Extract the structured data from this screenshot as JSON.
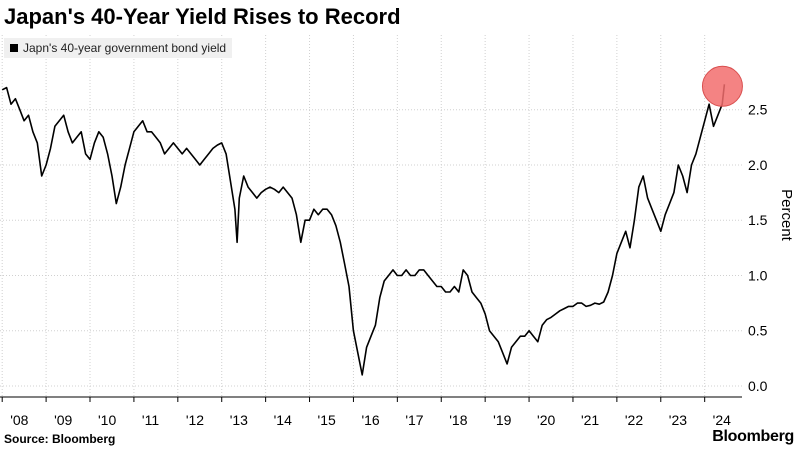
{
  "source": "Source: Bloomberg",
  "brand": "Bloomberg",
  "colors": {
    "line": "#000000",
    "grid": "#d0d0d0",
    "highlight": "#f26d6d"
  },
  "chart_data": {
    "type": "line",
    "title": "Japan's 40-Year Yield Rises to Record",
    "ylabel": "Percent",
    "xlabel": "",
    "ylim": [
      -0.1,
      2.95
    ],
    "xlim": [
      2007.95,
      2024.85
    ],
    "ytick_labels": [
      "0.0",
      "0.5",
      "1.0",
      "1.5",
      "2.0",
      "2.5"
    ],
    "yticks": [
      0.0,
      0.5,
      1.0,
      1.5,
      2.0,
      2.5
    ],
    "xtick_labels": [
      "'08",
      "'09",
      "'10",
      "'11",
      "'12",
      "'13",
      "'14",
      "'15",
      "'16",
      "'17",
      "'18",
      "'19",
      "'20",
      "'21",
      "'22",
      "'23",
      "'24"
    ],
    "xticks": [
      2008,
      2009,
      2010,
      2011,
      2012,
      2013,
      2014,
      2015,
      2016,
      2017,
      2018,
      2019,
      2020,
      2021,
      2022,
      2023,
      2024
    ],
    "grid": true,
    "legend_position": "top-left",
    "highlight_marker": {
      "x": 2024.45,
      "y": 2.73
    },
    "series": [
      {
        "name": "Japn's 40-year government bond yield",
        "x": [
          2008.0,
          2008.1,
          2008.2,
          2008.3,
          2008.4,
          2008.5,
          2008.6,
          2008.7,
          2008.8,
          2008.9,
          2009.0,
          2009.1,
          2009.2,
          2009.3,
          2009.4,
          2009.5,
          2009.6,
          2009.7,
          2009.8,
          2009.9,
          2010.0,
          2010.1,
          2010.2,
          2010.3,
          2010.4,
          2010.5,
          2010.6,
          2010.7,
          2010.8,
          2010.9,
          2011.0,
          2011.1,
          2011.2,
          2011.3,
          2011.4,
          2011.5,
          2011.6,
          2011.7,
          2011.8,
          2011.9,
          2012.0,
          2012.1,
          2012.2,
          2012.3,
          2012.4,
          2012.5,
          2012.6,
          2012.7,
          2012.8,
          2012.9,
          2013.0,
          2013.1,
          2013.2,
          2013.3,
          2013.35,
          2013.4,
          2013.5,
          2013.6,
          2013.7,
          2013.8,
          2013.9,
          2014.0,
          2014.1,
          2014.2,
          2014.3,
          2014.4,
          2014.5,
          2014.6,
          2014.7,
          2014.8,
          2014.9,
          2015.0,
          2015.1,
          2015.2,
          2015.3,
          2015.4,
          2015.5,
          2015.6,
          2015.7,
          2015.8,
          2015.9,
          2016.0,
          2016.1,
          2016.2,
          2016.3,
          2016.4,
          2016.5,
          2016.6,
          2016.7,
          2016.8,
          2016.9,
          2017.0,
          2017.1,
          2017.2,
          2017.3,
          2017.4,
          2017.5,
          2017.6,
          2017.7,
          2017.8,
          2017.9,
          2018.0,
          2018.1,
          2018.2,
          2018.3,
          2018.4,
          2018.5,
          2018.6,
          2018.7,
          2018.8,
          2018.9,
          2019.0,
          2019.1,
          2019.2,
          2019.3,
          2019.4,
          2019.5,
          2019.6,
          2019.7,
          2019.8,
          2019.9,
          2020.0,
          2020.1,
          2020.2,
          2020.3,
          2020.4,
          2020.5,
          2020.6,
          2020.7,
          2020.8,
          2020.9,
          2021.0,
          2021.1,
          2021.2,
          2021.3,
          2021.4,
          2021.5,
          2021.6,
          2021.7,
          2021.8,
          2021.9,
          2022.0,
          2022.1,
          2022.2,
          2022.3,
          2022.4,
          2022.5,
          2022.6,
          2022.7,
          2022.8,
          2022.9,
          2023.0,
          2023.1,
          2023.2,
          2023.3,
          2023.4,
          2023.5,
          2023.6,
          2023.7,
          2023.8,
          2023.9,
          2024.0,
          2024.1,
          2024.2,
          2024.3,
          2024.4,
          2024.45
        ],
        "y": [
          2.68,
          2.7,
          2.55,
          2.6,
          2.5,
          2.4,
          2.45,
          2.3,
          2.2,
          1.9,
          2.0,
          2.15,
          2.35,
          2.4,
          2.45,
          2.3,
          2.2,
          2.25,
          2.3,
          2.1,
          2.05,
          2.2,
          2.3,
          2.25,
          2.1,
          1.9,
          1.65,
          1.8,
          2.0,
          2.15,
          2.3,
          2.35,
          2.4,
          2.3,
          2.3,
          2.25,
          2.2,
          2.1,
          2.15,
          2.2,
          2.15,
          2.1,
          2.15,
          2.1,
          2.05,
          2.0,
          2.05,
          2.1,
          2.15,
          2.18,
          2.2,
          2.1,
          1.85,
          1.6,
          1.3,
          1.7,
          1.9,
          1.8,
          1.75,
          1.7,
          1.75,
          1.78,
          1.8,
          1.78,
          1.75,
          1.8,
          1.75,
          1.7,
          1.55,
          1.3,
          1.5,
          1.5,
          1.6,
          1.55,
          1.6,
          1.6,
          1.55,
          1.45,
          1.3,
          1.1,
          0.9,
          0.5,
          0.3,
          0.1,
          0.35,
          0.45,
          0.55,
          0.8,
          0.95,
          1.0,
          1.05,
          1.0,
          1.0,
          1.05,
          1.0,
          1.0,
          1.05,
          1.05,
          1.0,
          0.95,
          0.9,
          0.9,
          0.85,
          0.85,
          0.9,
          0.85,
          1.05,
          1.0,
          0.85,
          0.8,
          0.75,
          0.65,
          0.5,
          0.45,
          0.4,
          0.3,
          0.2,
          0.35,
          0.4,
          0.45,
          0.45,
          0.5,
          0.45,
          0.4,
          0.55,
          0.6,
          0.62,
          0.65,
          0.68,
          0.7,
          0.72,
          0.72,
          0.75,
          0.75,
          0.72,
          0.73,
          0.75,
          0.74,
          0.76,
          0.85,
          1.0,
          1.2,
          1.3,
          1.4,
          1.25,
          1.5,
          1.8,
          1.9,
          1.7,
          1.6,
          1.5,
          1.4,
          1.55,
          1.65,
          1.75,
          2.0,
          1.9,
          1.75,
          2.0,
          2.1,
          2.25,
          2.4,
          2.55,
          2.35,
          2.45,
          2.55,
          2.73
        ]
      }
    ]
  }
}
